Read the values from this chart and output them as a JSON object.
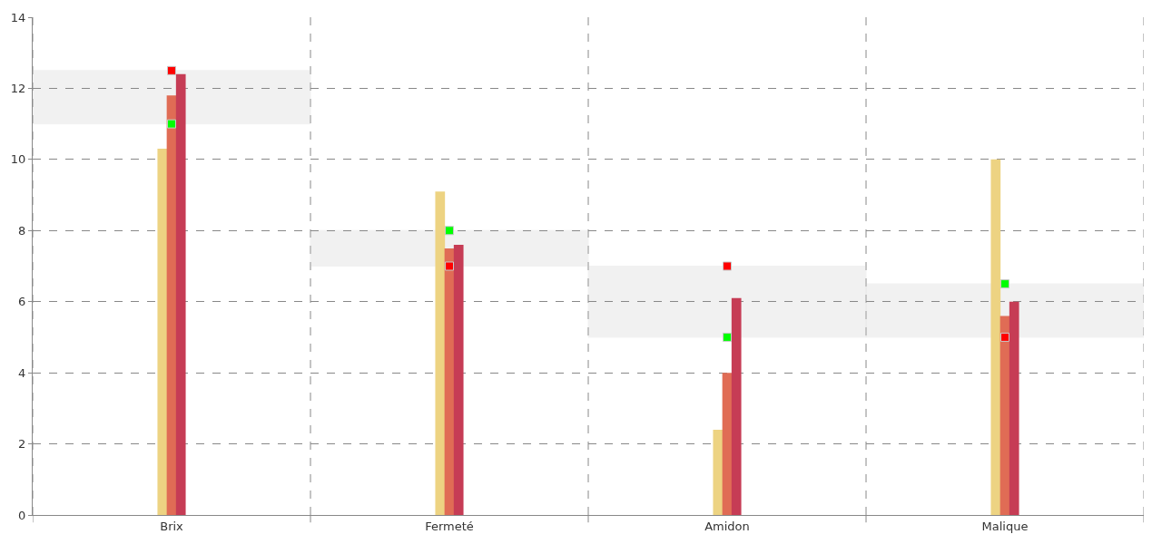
{
  "chart_data": {
    "type": "bar",
    "categories": [
      "Brix",
      "Fermeté",
      "Amidon",
      "Malique"
    ],
    "series": [
      {
        "color": "#edd382",
        "values": [
          10.3,
          9.1,
          2.4,
          10.0
        ]
      },
      {
        "color": "#e06c55",
        "values": [
          11.8,
          7.5,
          4.0,
          5.6
        ]
      },
      {
        "color": "#c63c55",
        "values": [
          12.4,
          7.6,
          6.1,
          6.0
        ]
      },
      {
        "type": "scatter",
        "color": "#00ff00",
        "x": [
          "Brix",
          "Fermeté",
          "Amidon",
          "Malique"
        ],
        "values": [
          11,
          8,
          5,
          6.5
        ]
      },
      {
        "type": "scatter",
        "color": "#ff0000",
        "x": [
          "Brix",
          "Fermeté",
          "Amidon",
          "Malique"
        ],
        "values": [
          12.5,
          7,
          7,
          5
        ]
      }
    ],
    "bands": [
      {
        "axis": "y",
        "from": 11,
        "to": 12.5,
        "color": "#c8c8c8"
      },
      {
        "axis": "y",
        "from": 7,
        "to": 8,
        "color": "#c8c8c8"
      },
      {
        "axis": "y",
        "from": 5,
        "to": 7,
        "color": "#c8c8c8"
      },
      {
        "axis": "y",
        "from": 5,
        "to": 6.5,
        "color": "#c8c8c8"
      }
    ],
    "ylim": [
      0,
      14
    ],
    "yticks": [
      0,
      2,
      4,
      6,
      8,
      10,
      12,
      14
    ],
    "grid": true,
    "marker": "square"
  }
}
